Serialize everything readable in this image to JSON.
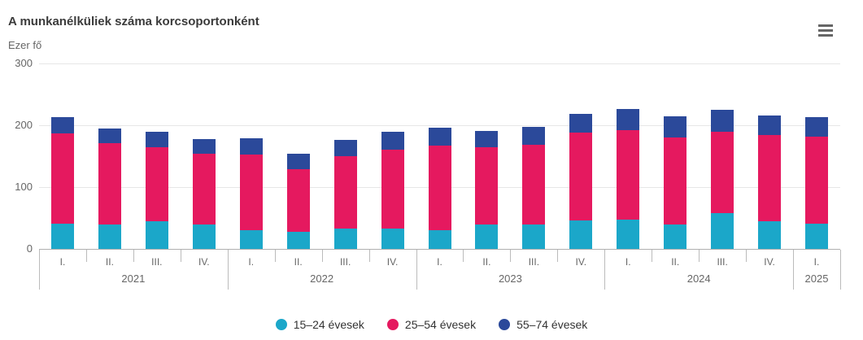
{
  "title": "A munkanélküliek száma korcsoportonként",
  "y_axis_unit": "Ezer fő",
  "context_menu_icon": "hamburger-icon",
  "colors": {
    "series_15_24": "#1ba7c9",
    "series_25_54": "#e5195f",
    "series_55_74": "#2b499a",
    "grid": "#e6e6e6",
    "axis": "#b0b0b0",
    "muted_text": "#666666",
    "title_text": "#3b3b3b"
  },
  "chart_data": {
    "type": "bar",
    "stacked": true,
    "title": "A munkanélküliek száma korcsoportonként",
    "ylabel": "Ezer fő",
    "xlabel": "",
    "ylim": [
      0,
      300
    ],
    "y_ticks": [
      300,
      200,
      100,
      0
    ],
    "grid": true,
    "legend_position": "bottom",
    "x_groups": [
      {
        "year": "2021",
        "quarters": [
          "I.",
          "II.",
          "III.",
          "IV."
        ]
      },
      {
        "year": "2022",
        "quarters": [
          "I.",
          "II.",
          "III.",
          "IV."
        ]
      },
      {
        "year": "2023",
        "quarters": [
          "I.",
          "II.",
          "III.",
          "IV."
        ]
      },
      {
        "year": "2024",
        "quarters": [
          "I.",
          "II.",
          "III.",
          "IV."
        ]
      },
      {
        "year": "2025",
        "quarters": [
          "I."
        ]
      }
    ],
    "categories": [
      "2021 I.",
      "2021 II.",
      "2021 III.",
      "2021 IV.",
      "2022 I.",
      "2022 II.",
      "2022 III.",
      "2022 IV.",
      "2023 I.",
      "2023 II.",
      "2023 III.",
      "2023 IV.",
      "2024 I.",
      "2024 II.",
      "2024 III.",
      "2024 IV.",
      "2025 I."
    ],
    "series": [
      {
        "name": "15–24 évesek",
        "key": "15-24",
        "color": "#1ba7c9",
        "values": [
          41,
          40,
          45,
          39,
          30,
          27,
          33,
          33,
          30,
          40,
          39,
          46,
          48,
          40,
          58,
          45,
          41
        ]
      },
      {
        "name": "25–54 évesek",
        "key": "25-54",
        "color": "#e5195f",
        "values": [
          146,
          131,
          120,
          115,
          123,
          102,
          117,
          128,
          137,
          125,
          130,
          142,
          144,
          140,
          132,
          139,
          141
        ]
      },
      {
        "name": "55–74 évesek",
        "key": "55-74",
        "color": "#2b499a",
        "values": [
          26,
          24,
          24,
          24,
          26,
          25,
          26,
          28,
          29,
          26,
          29,
          30,
          34,
          34,
          35,
          32,
          31
        ]
      }
    ]
  }
}
